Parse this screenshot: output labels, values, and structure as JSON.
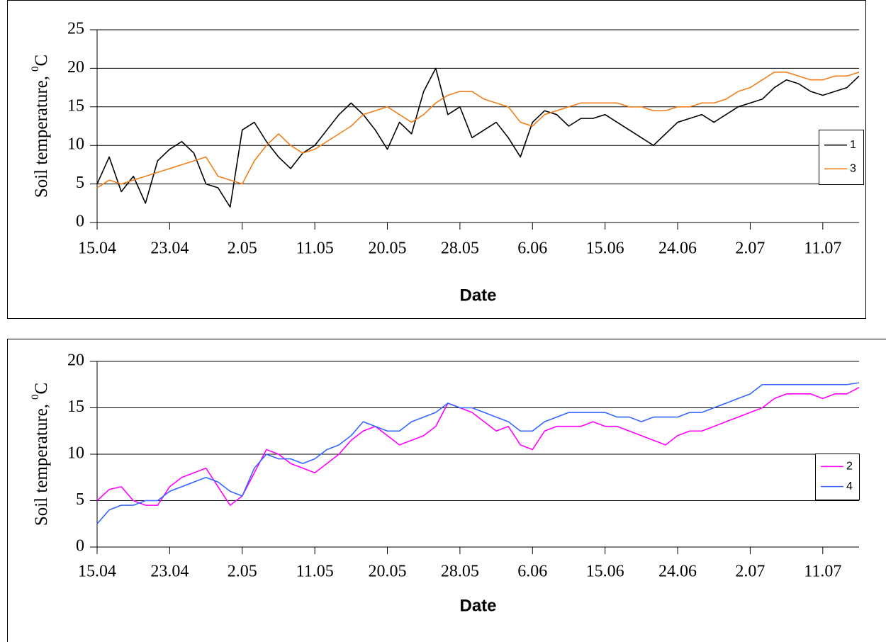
{
  "chart_data": [
    {
      "type": "line",
      "ylabel": [
        "Soil temperature,",
        "0",
        "C"
      ],
      "xlabel": "Date",
      "categories": [
        "15.04",
        null,
        null,
        null,
        null,
        null,
        "23.04",
        null,
        null,
        null,
        null,
        null,
        "2.05",
        null,
        null,
        null,
        null,
        null,
        "11.05",
        null,
        null,
        null,
        null,
        null,
        "20.05",
        null,
        null,
        null,
        null,
        null,
        "28.05",
        null,
        null,
        null,
        null,
        null,
        "6.06",
        null,
        null,
        null,
        null,
        null,
        "15.06",
        null,
        null,
        null,
        null,
        null,
        "24.06",
        null,
        null,
        null,
        null,
        null,
        "2.07",
        null,
        null,
        null,
        null,
        null,
        "11.07",
        null,
        null,
        null
      ],
      "ylim": [
        0,
        25
      ],
      "yticks": [
        0,
        5,
        10,
        15,
        20,
        25
      ],
      "grid": true,
      "legend": "right",
      "series": [
        {
          "name": "1",
          "color": "#000000",
          "values": [
            5,
            8.5,
            4,
            6,
            2.5,
            8,
            9.5,
            10.5,
            9,
            5,
            4.5,
            2,
            12,
            13,
            10.5,
            8.5,
            7,
            9,
            10,
            12,
            14,
            15.5,
            14,
            12,
            9.5,
            13,
            11.5,
            17,
            20,
            14,
            15,
            11,
            12,
            13,
            11,
            8.5,
            13,
            14.5,
            14,
            12.5,
            13.5,
            13.5,
            14,
            13,
            12,
            11,
            10,
            11.5,
            13,
            13.5,
            14,
            13,
            14,
            15,
            15.5,
            16,
            17.5,
            18.5,
            18,
            17,
            16.5,
            17,
            17.5,
            19
          ]
        },
        {
          "name": "3",
          "color": "#f07f1a",
          "values": [
            4.5,
            5.5,
            5,
            5.5,
            6,
            6.5,
            7,
            7.5,
            8,
            8.5,
            6,
            5.5,
            5,
            8,
            10,
            11.5,
            10,
            9,
            9.5,
            10.5,
            11.5,
            12.5,
            14,
            14.5,
            15,
            14,
            13,
            14,
            15.5,
            16.5,
            17,
            17,
            16,
            15.5,
            15,
            13,
            12.5,
            14,
            14.5,
            15,
            15.5,
            15.5,
            15.5,
            15.5,
            15,
            15,
            14.5,
            14.5,
            15,
            15,
            15.5,
            15.5,
            16,
            17,
            17.5,
            18.5,
            19.5,
            19.5,
            19,
            18.5,
            18.5,
            19,
            19,
            19.5
          ]
        }
      ]
    },
    {
      "type": "line",
      "ylabel": [
        "Soil temperature,",
        "0",
        "C"
      ],
      "xlabel": "Date",
      "categories": [
        "15.04",
        null,
        null,
        null,
        null,
        null,
        "23.04",
        null,
        null,
        null,
        null,
        null,
        "2.05",
        null,
        null,
        null,
        null,
        null,
        "11.05",
        null,
        null,
        null,
        null,
        null,
        "20.05",
        null,
        null,
        null,
        null,
        null,
        "28.05",
        null,
        null,
        null,
        null,
        null,
        "6.06",
        null,
        null,
        null,
        null,
        null,
        "15.06",
        null,
        null,
        null,
        null,
        null,
        "24.06",
        null,
        null,
        null,
        null,
        null,
        "2.07",
        null,
        null,
        null,
        null,
        null,
        "11.07",
        null,
        null,
        null
      ],
      "ylim": [
        0,
        20
      ],
      "yticks": [
        0,
        5,
        10,
        15,
        20
      ],
      "grid": true,
      "legend": "right",
      "series": [
        {
          "name": "2",
          "color": "#ff00ff",
          "values": [
            5,
            6.2,
            6.5,
            5,
            4.5,
            4.5,
            6.5,
            7.5,
            8,
            8.5,
            6.5,
            4.5,
            5.5,
            8,
            10.5,
            10,
            9,
            8.5,
            8,
            9,
            10,
            11.5,
            12.5,
            13,
            12,
            11,
            11.5,
            12,
            13,
            15.5,
            15,
            14.5,
            13.5,
            12.5,
            13,
            11,
            10.5,
            12.5,
            13,
            13,
            13,
            13.5,
            13,
            13,
            12.5,
            12,
            11.5,
            11,
            12,
            12.5,
            12.5,
            13,
            13.5,
            14,
            14.5,
            15,
            16,
            16.5,
            16.5,
            16.5,
            16,
            16.5,
            16.5,
            17.2
          ]
        },
        {
          "name": "4",
          "color": "#3366ff",
          "values": [
            2.5,
            4,
            4.5,
            4.5,
            5,
            5,
            6,
            6.5,
            7,
            7.5,
            7,
            6,
            5.5,
            8.5,
            10,
            9.5,
            9.5,
            9,
            9.5,
            10.5,
            11,
            12,
            13.5,
            13,
            12.5,
            12.5,
            13.5,
            14,
            14.5,
            15.5,
            15,
            15,
            14.5,
            14,
            13.5,
            12.5,
            12.5,
            13.5,
            14,
            14.5,
            14.5,
            14.5,
            14.5,
            14,
            14,
            13.5,
            14,
            14,
            14,
            14.5,
            14.5,
            15,
            15.5,
            16,
            16.5,
            17.5,
            17.5,
            17.5,
            17.5,
            17.5,
            17.5,
            17.5,
            17.5,
            17.7
          ]
        }
      ]
    }
  ]
}
